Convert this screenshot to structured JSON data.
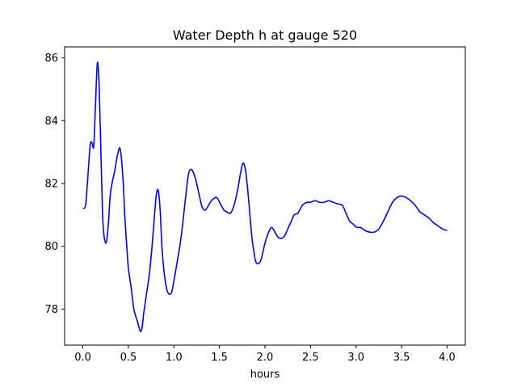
{
  "chart_data": {
    "type": "line",
    "title": "Water Depth h at gauge 520",
    "xlabel": "hours",
    "ylabel": "",
    "xlim": [
      -0.2,
      4.2
    ],
    "ylim": [
      76.85,
      86.35
    ],
    "xticks": [
      0.0,
      0.5,
      1.0,
      1.5,
      2.0,
      2.5,
      3.0,
      3.5,
      4.0
    ],
    "xtick_labels": [
      "0.0",
      "0.5",
      "1.0",
      "1.5",
      "2.0",
      "2.5",
      "3.0",
      "3.5",
      "4.0"
    ],
    "yticks": [
      78,
      80,
      82,
      84,
      86
    ],
    "ytick_labels": [
      "78",
      "80",
      "82",
      "84",
      "86"
    ],
    "grid": false,
    "legend": "none",
    "series": [
      {
        "color": "#0000ff",
        "x": [
          0.0,
          0.03,
          0.05,
          0.08,
          0.1,
          0.12,
          0.14,
          0.16,
          0.18,
          0.2,
          0.22,
          0.24,
          0.26,
          0.28,
          0.3,
          0.32,
          0.35,
          0.38,
          0.41,
          0.44,
          0.46,
          0.48,
          0.5,
          0.53,
          0.56,
          0.6,
          0.63,
          0.65,
          0.67,
          0.7,
          0.73,
          0.76,
          0.79,
          0.81,
          0.83,
          0.85,
          0.87,
          0.9,
          0.93,
          0.97,
          1.0,
          1.03,
          1.07,
          1.1,
          1.13,
          1.16,
          1.19,
          1.22,
          1.25,
          1.28,
          1.31,
          1.34,
          1.37,
          1.4,
          1.43,
          1.47,
          1.51,
          1.55,
          1.58,
          1.62,
          1.66,
          1.7,
          1.73,
          1.76,
          1.79,
          1.82,
          1.84,
          1.86,
          1.88,
          1.9,
          1.93,
          1.96,
          2.0,
          2.04,
          2.07,
          2.1,
          2.14,
          2.18,
          2.22,
          2.25,
          2.29,
          2.32,
          2.36,
          2.41,
          2.46,
          2.5,
          2.55,
          2.6,
          2.65,
          2.7,
          2.75,
          2.8,
          2.85,
          2.89,
          2.93,
          2.97,
          3.01,
          3.05,
          3.1,
          3.15,
          3.2,
          3.25,
          3.3,
          3.35,
          3.4,
          3.45,
          3.5,
          3.55,
          3.6,
          3.65,
          3.7,
          3.75,
          3.8,
          3.85,
          3.9,
          3.95,
          4.0
        ],
        "y": [
          81.2,
          81.3,
          82.0,
          83.2,
          83.3,
          83.2,
          84.6,
          85.85,
          85.0,
          82.8,
          80.8,
          80.2,
          80.15,
          80.7,
          81.6,
          82.0,
          82.4,
          82.9,
          83.1,
          82.2,
          81.0,
          80.1,
          79.3,
          78.7,
          78.0,
          77.6,
          77.3,
          77.4,
          77.9,
          78.5,
          79.1,
          80.0,
          81.1,
          81.7,
          81.75,
          81.1,
          79.9,
          79.0,
          78.55,
          78.5,
          78.9,
          79.4,
          80.1,
          80.8,
          81.6,
          82.3,
          82.45,
          82.3,
          82.0,
          81.6,
          81.25,
          81.15,
          81.25,
          81.4,
          81.5,
          81.55,
          81.35,
          81.15,
          81.1,
          81.05,
          81.3,
          81.8,
          82.3,
          82.65,
          82.35,
          81.5,
          80.8,
          80.2,
          79.8,
          79.5,
          79.45,
          79.6,
          80.1,
          80.45,
          80.6,
          80.5,
          80.3,
          80.25,
          80.35,
          80.55,
          80.8,
          81.0,
          81.05,
          81.3,
          81.4,
          81.4,
          81.45,
          81.4,
          81.4,
          81.45,
          81.4,
          81.35,
          81.3,
          81.05,
          80.8,
          80.7,
          80.6,
          80.6,
          80.5,
          80.45,
          80.45,
          80.55,
          80.8,
          81.1,
          81.4,
          81.55,
          81.6,
          81.55,
          81.45,
          81.3,
          81.1,
          81.0,
          80.9,
          80.75,
          80.65,
          80.55,
          80.5
        ]
      }
    ]
  }
}
